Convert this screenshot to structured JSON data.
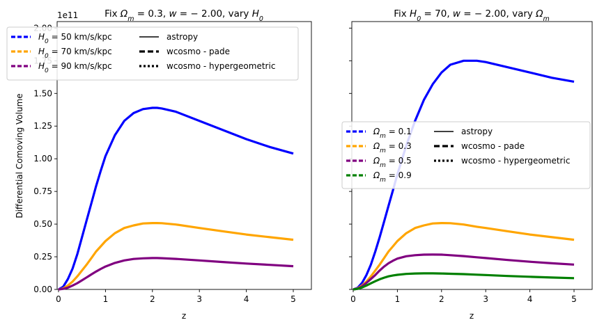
{
  "chart_data": [
    {
      "type": "line",
      "title_parts": [
        "Fix ",
        "Ω",
        "m",
        " = 0.3, ",
        "w",
        " = − 2.00, vary ",
        "H",
        "0"
      ],
      "xlabel": "z",
      "ylabel": "Differential Comoving Volume",
      "offset_text": "1e11",
      "xlim": [
        0,
        5.25
      ],
      "ylim": [
        0,
        2.05
      ],
      "xticks": [
        "0",
        "1",
        "2",
        "3",
        "4",
        "5"
      ],
      "yticks": [
        "0.00",
        "0.25",
        "0.50",
        "0.75",
        "1.00",
        "1.25",
        "1.50",
        "1.75",
        "2.00"
      ],
      "x": [
        0,
        0.1,
        0.2,
        0.3,
        0.4,
        0.5,
        0.6,
        0.7,
        0.8,
        0.9,
        1.0,
        1.2,
        1.4,
        1.6,
        1.8,
        2.0,
        2.1,
        2.2,
        2.5,
        3.0,
        3.5,
        4.0,
        4.5,
        5.0
      ],
      "series": [
        {
          "label_pre": "H",
          "label_sub": "0",
          "label_post": " = 50 km/s/kpc",
          "color": "#0000ff",
          "values": [
            0,
            0.02,
            0.08,
            0.16,
            0.27,
            0.4,
            0.53,
            0.66,
            0.79,
            0.91,
            1.02,
            1.18,
            1.29,
            1.35,
            1.38,
            1.39,
            1.39,
            1.385,
            1.36,
            1.29,
            1.22,
            1.15,
            1.09,
            1.04
          ]
        },
        {
          "label_pre": "H",
          "label_sub": "0",
          "label_post": " = 70 km/s/kpc",
          "color": "#ffa500",
          "values": [
            0,
            0.008,
            0.03,
            0.06,
            0.1,
            0.145,
            0.19,
            0.24,
            0.29,
            0.33,
            0.37,
            0.43,
            0.47,
            0.49,
            0.505,
            0.508,
            0.508,
            0.507,
            0.497,
            0.47,
            0.445,
            0.42,
            0.4,
            0.38
          ]
        },
        {
          "label_pre": "H",
          "label_sub": "0",
          "label_post": " = 90 km/s/kpc",
          "color": "#800080",
          "values": [
            0,
            0.004,
            0.014,
            0.03,
            0.048,
            0.07,
            0.092,
            0.115,
            0.137,
            0.157,
            0.175,
            0.203,
            0.222,
            0.233,
            0.238,
            0.24,
            0.24,
            0.239,
            0.234,
            0.222,
            0.21,
            0.198,
            0.188,
            0.178
          ]
        }
      ],
      "style_legend": [
        "astropy",
        "wcosmo - pade",
        "wcosmo - hypergeometric"
      ],
      "legend_loc": "upper-left"
    },
    {
      "type": "line",
      "title_parts": [
        "Fix ",
        "H",
        "0",
        " = 70, ",
        "w",
        " = − 2.00, vary ",
        "Ω",
        "m",
        ""
      ],
      "xlabel": "z",
      "ylabel": "",
      "xlim": [
        0,
        5.25
      ],
      "ylim": [
        0,
        2.05
      ],
      "xticks": [
        "0",
        "1",
        "2",
        "3",
        "4",
        "5"
      ],
      "x": [
        0,
        0.1,
        0.2,
        0.3,
        0.4,
        0.5,
        0.6,
        0.7,
        0.8,
        0.9,
        1.0,
        1.2,
        1.4,
        1.6,
        1.8,
        2.0,
        2.2,
        2.5,
        2.8,
        3.0,
        3.5,
        4.0,
        4.5,
        5.0
      ],
      "series": [
        {
          "label_pre": "Ω",
          "label_sub": "m",
          "label_post": " = 0.1",
          "color": "#0000ff",
          "values": [
            0,
            0.012,
            0.05,
            0.11,
            0.19,
            0.29,
            0.4,
            0.52,
            0.64,
            0.76,
            0.88,
            1.1,
            1.29,
            1.45,
            1.57,
            1.66,
            1.72,
            1.75,
            1.75,
            1.74,
            1.7,
            1.66,
            1.62,
            1.59
          ]
        },
        {
          "label_pre": "Ω",
          "label_sub": "m",
          "label_post": " = 0.3",
          "color": "#ffa500",
          "values": [
            0,
            0.008,
            0.03,
            0.06,
            0.1,
            0.145,
            0.19,
            0.24,
            0.29,
            0.33,
            0.37,
            0.43,
            0.47,
            0.49,
            0.505,
            0.508,
            0.507,
            0.497,
            0.48,
            0.47,
            0.445,
            0.42,
            0.4,
            0.38
          ]
        },
        {
          "label_pre": "Ω",
          "label_sub": "m",
          "label_post": " = 0.5",
          "color": "#800080",
          "values": [
            0,
            0.006,
            0.024,
            0.05,
            0.08,
            0.11,
            0.145,
            0.175,
            0.2,
            0.22,
            0.236,
            0.254,
            0.262,
            0.266,
            0.267,
            0.266,
            0.262,
            0.255,
            0.246,
            0.24,
            0.225,
            0.212,
            0.2,
            0.19
          ]
        },
        {
          "label_pre": "Ω",
          "label_sub": "m",
          "label_post": " = 0.9",
          "color": "#008000",
          "values": [
            0,
            0.004,
            0.015,
            0.03,
            0.047,
            0.063,
            0.078,
            0.09,
            0.1,
            0.107,
            0.112,
            0.119,
            0.122,
            0.123,
            0.123,
            0.122,
            0.12,
            0.117,
            0.113,
            0.11,
            0.103,
            0.097,
            0.091,
            0.086
          ]
        }
      ],
      "style_legend": [
        "astropy",
        "wcosmo - pade",
        "wcosmo - hypergeometric"
      ],
      "legend_loc": "center"
    }
  ]
}
